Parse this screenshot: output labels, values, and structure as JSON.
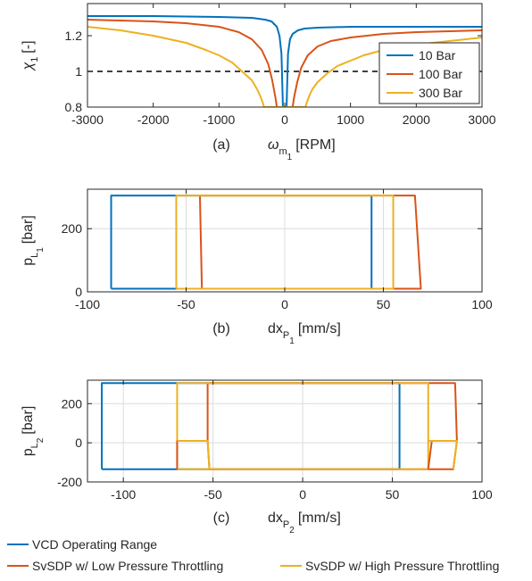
{
  "colors": {
    "blue": "#0072BD",
    "orange": "#D95319",
    "yellow": "#EDB120",
    "axis": "#262626",
    "grid": "#dcdcdc"
  },
  "figure_legend": [
    {
      "label": "VCD Operating Range",
      "color": "#0072BD"
    },
    {
      "label": "SvSDP w/ Low Pressure Throttling",
      "color": "#D95319"
    },
    {
      "label": "SvSDP w/ High Pressure Throttling",
      "color": "#EDB120"
    }
  ],
  "chart_data": [
    {
      "type": "line",
      "panel_label": "(a)",
      "xlabel": "ω",
      "xlabel_sub": "m",
      "xlabel_subsub": "1",
      "xlabel_unit": "[RPM]",
      "ylabel": "χ",
      "ylabel_sub": "1",
      "ylabel_unit": "[-]",
      "xlim": [
        -3000,
        3000
      ],
      "ylim": [
        0.8,
        1.38
      ],
      "xticks": [
        -3000,
        -2000,
        -1000,
        0,
        1000,
        2000,
        3000
      ],
      "xtick_labels": [
        "-3000",
        "-2000",
        "-1000",
        "0",
        "1000",
        "2000",
        "3000"
      ],
      "yticks": [
        0.8,
        1,
        1.2
      ],
      "ytick_labels": [
        "0.8",
        "1",
        "1.2"
      ],
      "grid": false,
      "legend_position": "bottom-right",
      "reference_line": {
        "y": 1,
        "style": "dashed",
        "color": "#000000"
      },
      "series": [
        {
          "name": "10 Bar",
          "color": "#0072BD",
          "points": [
            [
              -3000,
              1.31
            ],
            [
              -2000,
              1.31
            ],
            [
              -1000,
              1.305
            ],
            [
              -500,
              1.3
            ],
            [
              -300,
              1.29
            ],
            [
              -200,
              1.28
            ],
            [
              -120,
              1.25
            ],
            [
              -80,
              1.2
            ],
            [
              -50,
              1.1
            ],
            [
              -35,
              0.9
            ],
            [
              -28,
              0.8
            ],
            [
              28,
              0.8
            ],
            [
              35,
              0.9
            ],
            [
              50,
              1.1
            ],
            [
              80,
              1.18
            ],
            [
              120,
              1.21
            ],
            [
              200,
              1.23
            ],
            [
              300,
              1.24
            ],
            [
              500,
              1.245
            ],
            [
              1000,
              1.25
            ],
            [
              2000,
              1.25
            ],
            [
              3000,
              1.25
            ]
          ]
        },
        {
          "name": "100 Bar",
          "color": "#D95319",
          "points": [
            [
              -3000,
              1.29
            ],
            [
              -2500,
              1.285
            ],
            [
              -2000,
              1.28
            ],
            [
              -1500,
              1.27
            ],
            [
              -1000,
              1.25
            ],
            [
              -700,
              1.22
            ],
            [
              -500,
              1.18
            ],
            [
              -350,
              1.12
            ],
            [
              -250,
              1.04
            ],
            [
              -190,
              0.95
            ],
            [
              -140,
              0.85
            ],
            [
              -120,
              0.8
            ],
            [
              120,
              0.8
            ],
            [
              140,
              0.85
            ],
            [
              190,
              0.94
            ],
            [
              250,
              1.02
            ],
            [
              350,
              1.09
            ],
            [
              500,
              1.14
            ],
            [
              700,
              1.17
            ],
            [
              1000,
              1.19
            ],
            [
              1500,
              1.21
            ],
            [
              2000,
              1.22
            ],
            [
              2500,
              1.225
            ],
            [
              3000,
              1.23
            ]
          ]
        },
        {
          "name": "300 Bar",
          "color": "#EDB120",
          "points": [
            [
              -3000,
              1.25
            ],
            [
              -2500,
              1.23
            ],
            [
              -2000,
              1.2
            ],
            [
              -1500,
              1.16
            ],
            [
              -1200,
              1.12
            ],
            [
              -1000,
              1.09
            ],
            [
              -800,
              1.05
            ],
            [
              -650,
              1.0
            ],
            [
              -500,
              0.95
            ],
            [
              -420,
              0.9
            ],
            [
              -370,
              0.86
            ],
            [
              -330,
              0.82
            ],
            [
              -315,
              0.8
            ],
            [
              315,
              0.8
            ],
            [
              330,
              0.82
            ],
            [
              370,
              0.86
            ],
            [
              420,
              0.9
            ],
            [
              500,
              0.94
            ],
            [
              650,
              0.99
            ],
            [
              800,
              1.03
            ],
            [
              1000,
              1.06
            ],
            [
              1200,
              1.09
            ],
            [
              1500,
              1.12
            ],
            [
              2000,
              1.15
            ],
            [
              2500,
              1.17
            ],
            [
              3000,
              1.19
            ]
          ]
        }
      ]
    },
    {
      "type": "line",
      "panel_label": "(b)",
      "xlabel": "dx",
      "xlabel_sub": "P",
      "xlabel_subsub": "1",
      "xlabel_unit": "[mm/s]",
      "ylabel": "p",
      "ylabel_sub": "L",
      "ylabel_subsub": "1",
      "ylabel_unit": "[bar]",
      "xlim": [
        -100,
        100
      ],
      "ylim": [
        0,
        325
      ],
      "xticks": [
        -100,
        -50,
        0,
        50,
        100
      ],
      "xtick_labels": [
        "-100",
        "-50",
        "0",
        "50",
        "100"
      ],
      "yticks": [
        0,
        200
      ],
      "ytick_labels": [
        "0",
        "200"
      ],
      "grid": true,
      "series": [
        {
          "color": "#0072BD",
          "points": [
            [
              -88,
              10
            ],
            [
              -88,
              305
            ],
            [
              44,
              305
            ],
            [
              44,
              10
            ],
            [
              -88,
              10
            ]
          ]
        },
        {
          "color": "#D95319",
          "points": [
            [
              -42,
              10
            ],
            [
              -43,
              305
            ],
            [
              66,
              305
            ],
            [
              69,
              10
            ],
            [
              -42,
              10
            ]
          ]
        },
        {
          "color": "#EDB120",
          "points": [
            [
              -55,
              10
            ],
            [
              -55,
              305
            ],
            [
              55,
              305
            ],
            [
              55,
              10
            ],
            [
              -55,
              10
            ]
          ]
        }
      ]
    },
    {
      "type": "line",
      "panel_label": "(c)",
      "xlabel": "dx",
      "xlabel_sub": "P",
      "xlabel_subsub": "2",
      "xlabel_unit": "[mm/s]",
      "ylabel": "p",
      "ylabel_sub": "L",
      "ylabel_subsub": "2",
      "ylabel_unit": "[bar]",
      "xlim": [
        -120,
        100
      ],
      "ylim": [
        -200,
        320
      ],
      "xticks": [
        -100,
        -50,
        0,
        50,
        100
      ],
      "xtick_labels": [
        "-100",
        "-50",
        "0",
        "50",
        "100"
      ],
      "yticks": [
        -200,
        0,
        200
      ],
      "ytick_labels": [
        "-200",
        "0",
        "200"
      ],
      "grid": true,
      "series": [
        {
          "color": "#0072BD",
          "points": [
            [
              -112,
              -135
            ],
            [
              -112,
              305
            ],
            [
              54,
              305
            ],
            [
              54,
              -135
            ],
            [
              -112,
              -135
            ]
          ]
        },
        {
          "color": "#D95319",
          "points": [
            [
              -52,
              -135
            ],
            [
              -53,
              10
            ],
            [
              -53,
              305
            ],
            [
              85,
              305
            ],
            [
              86,
              10
            ],
            [
              84,
              -135
            ],
            [
              -52,
              -135
            ]
          ]
        },
        {
          "color": "#EDB120",
          "points": [
            [
              -70,
              -135
            ],
            [
              -70,
              10
            ],
            [
              -70,
              305
            ],
            [
              70,
              305
            ],
            [
              70,
              10
            ],
            [
              70,
              -135
            ],
            [
              -70,
              -135
            ]
          ]
        },
        {
          "color": "#D95319",
          "points": [
            [
              -70,
              -135
            ],
            [
              -70,
              10
            ],
            [
              -53,
              10
            ]
          ]
        },
        {
          "color": "#D95319",
          "points": [
            [
              70,
              -135
            ],
            [
              72,
              10
            ],
            [
              86,
              10
            ]
          ]
        },
        {
          "color": "#EDB120",
          "points": [
            [
              -70,
              10
            ],
            [
              -53,
              10
            ],
            [
              -52,
              -135
            ]
          ]
        },
        {
          "color": "#EDB120",
          "points": [
            [
              70,
              10
            ],
            [
              86,
              10
            ],
            [
              84,
              -135
            ]
          ]
        }
      ]
    }
  ]
}
